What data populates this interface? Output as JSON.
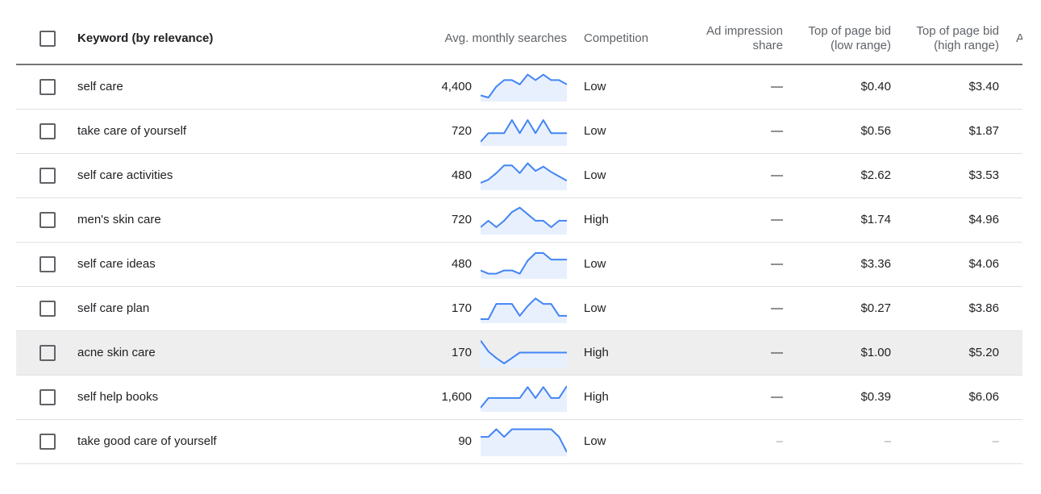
{
  "header": {
    "keyword": "Keyword (by relevance)",
    "avg_monthly_searches": "Avg. monthly searches",
    "competition": "Competition",
    "ad_impression_line1": "Ad impression",
    "ad_impression_line2": "share",
    "low_bid_line1": "Top of page bid",
    "low_bid_line2": "(low range)",
    "high_bid_line1": "Top of page bid",
    "high_bid_line2": "(high range)",
    "truncated_col": "A"
  },
  "colors": {
    "sparkline": "#4285f4",
    "sparkline_fill": "#e8f0fe",
    "highlight_row": "#eeeeee"
  },
  "rows": [
    {
      "keyword": "self care",
      "searches": "4,400",
      "trend": [
        0.9,
        1.0,
        0.5,
        0.2,
        0.2,
        0.4,
        -0.05,
        0.2,
        -0.05,
        0.2,
        0.2,
        0.4
      ],
      "competition": "Low",
      "ad_impression_share": "—",
      "low_bid": "$0.40",
      "high_bid": "$3.40"
    },
    {
      "keyword": "take care of yourself",
      "searches": "720",
      "trend": [
        1.0,
        0.6,
        0.6,
        0.6,
        0.0,
        0.6,
        0.0,
        0.6,
        0.0,
        0.6,
        0.6,
        0.6
      ],
      "competition": "Low",
      "ad_impression_share": "—",
      "low_bid": "$0.56",
      "high_bid": "$1.87"
    },
    {
      "keyword": "self care activities",
      "searches": "480",
      "trend": [
        0.85,
        0.7,
        0.4,
        0.05,
        0.05,
        0.4,
        -0.05,
        0.3,
        0.1,
        0.35,
        0.55,
        0.75
      ],
      "competition": "Low",
      "ad_impression_share": "—",
      "low_bid": "$2.62",
      "high_bid": "$3.53"
    },
    {
      "keyword": "men's skin care",
      "searches": "720",
      "trend": [
        0.85,
        0.55,
        0.85,
        0.55,
        0.15,
        -0.05,
        0.25,
        0.55,
        0.55,
        0.85,
        0.55,
        0.55
      ],
      "competition": "High",
      "ad_impression_share": "—",
      "low_bid": "$1.74",
      "high_bid": "$4.96"
    },
    {
      "keyword": "self care ideas",
      "searches": "480",
      "trend": [
        0.8,
        0.95,
        0.95,
        0.8,
        0.8,
        0.95,
        0.35,
        0.0,
        0.0,
        0.3,
        0.3,
        0.3
      ],
      "competition": "Low",
      "ad_impression_share": "—",
      "low_bid": "$3.36",
      "high_bid": "$4.06"
    },
    {
      "keyword": "self care plan",
      "searches": "170",
      "trend": [
        1.0,
        1.0,
        0.3,
        0.3,
        0.3,
        0.85,
        0.4,
        0.05,
        0.3,
        0.3,
        0.85,
        0.85
      ],
      "competition": "Low",
      "ad_impression_share": "—",
      "low_bid": "$0.27",
      "high_bid": "$3.86"
    },
    {
      "keyword": "acne skin care",
      "searches": "170",
      "trend": [
        -0.05,
        0.45,
        0.75,
        1.0,
        0.75,
        0.5,
        0.5,
        0.5,
        0.5,
        0.5,
        0.5,
        0.5
      ],
      "competition": "High",
      "ad_impression_share": "—",
      "low_bid": "$1.00",
      "high_bid": "$5.20"
    },
    {
      "keyword": "self help books",
      "searches": "1,600",
      "trend": [
        1.0,
        0.55,
        0.55,
        0.55,
        0.55,
        0.55,
        0.05,
        0.55,
        0.05,
        0.55,
        0.55,
        0.0
      ],
      "competition": "High",
      "ad_impression_share": "—",
      "low_bid": "$0.39",
      "high_bid": "$6.06"
    },
    {
      "keyword": "take good care of yourself",
      "searches": "90",
      "trend": [
        0.3,
        0.3,
        -0.05,
        0.3,
        -0.05,
        -0.05,
        -0.05,
        -0.05,
        -0.05,
        -0.05,
        0.3,
        1.0
      ],
      "competition": "Low",
      "ad_impression_share": "–",
      "low_bid": "–",
      "high_bid": "–"
    }
  ]
}
